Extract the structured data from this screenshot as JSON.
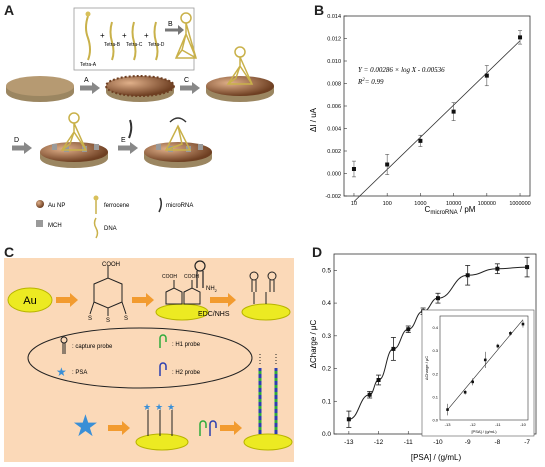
{
  "figure": {
    "labels": {
      "A": "A",
      "B": "B",
      "C": "C",
      "D": "D"
    }
  },
  "panelA": {
    "inset_parts": [
      "Tetra-A",
      "Tetra-B",
      "Tetra-C",
      "Tetra-D"
    ],
    "arrow_steps": [
      "A",
      "B",
      "C",
      "D",
      "E"
    ],
    "legend": [
      {
        "icon": "au-np-icon",
        "label": "Au NP"
      },
      {
        "icon": "ferrocene-icon",
        "label": "ferrocene"
      },
      {
        "icon": "microrna-icon",
        "label": "microRNA"
      },
      {
        "icon": "mch-icon",
        "label": "MCH"
      },
      {
        "icon": "dna-icon",
        "label": "DNA"
      }
    ],
    "colors": {
      "au_np": "#8a5a3a",
      "base": "#b69a72",
      "dna": "#c9b14a"
    }
  },
  "panelC": {
    "au_label": "Au",
    "cooh": "COOH",
    "nh2": "NH",
    "nh2_sub": "2",
    "reagent": "EDC/NHS",
    "legend": [
      "capture probe",
      "H1 probe",
      "PSA",
      "H2 probe"
    ],
    "legend_prefix": ":",
    "sulfur": "S",
    "colors": {
      "background": "#fbd9b8",
      "au": "#ecea22",
      "psa": "#3a8fd6",
      "h1": "#2eaa3a",
      "h2": "#2b3fb0"
    }
  },
  "chart_data": [
    {
      "type": "scatter",
      "panel": "B",
      "x": [
        10,
        100,
        1000,
        10000,
        100000,
        1000000
      ],
      "y": [
        0.0004,
        0.0008,
        0.0029,
        0.0055,
        0.0087,
        0.0121
      ],
      "yerr": [
        0.0007,
        0.0009,
        0.0005,
        0.0008,
        0.0009,
        0.0006
      ],
      "fit": {
        "slope": 0.00286,
        "intercept": -0.00536
      },
      "equation": "Y = 0.00286 × log X - 0.00536",
      "r2_label": "R",
      "r2_value": "= 0.99",
      "x_log": true,
      "xlim": [
        10,
        1000000
      ],
      "ylim": [
        -0.002,
        0.014
      ],
      "x_ticks": [
        "10",
        "100",
        "1000",
        "10000",
        "100000",
        "1000000"
      ],
      "y_ticks": [
        "-0.002",
        "0.000",
        "0.002",
        "0.004",
        "0.006",
        "0.008",
        "0.010",
        "0.012",
        "0.014"
      ],
      "ylabel": "ΔI / uA",
      "xlabel_main": "C",
      "xlabel_sub": "microRNA",
      "xlabel_unit": " / pM"
    },
    {
      "type": "line",
      "panel": "D",
      "x": [
        -13,
        -12.3,
        -12,
        -11.5,
        -11,
        -10.5,
        -10,
        -9,
        -8,
        -7
      ],
      "y": [
        0.045,
        0.12,
        0.165,
        0.26,
        0.32,
        0.375,
        0.415,
        0.485,
        0.505,
        0.51
      ],
      "yerr": [
        0.025,
        0.01,
        0.015,
        0.035,
        0.01,
        0.01,
        0.015,
        0.03,
        0.015,
        0.03
      ],
      "xlim": [
        -13.5,
        -6.7
      ],
      "ylim": [
        0,
        0.55
      ],
      "x_ticks": [
        "-13",
        "-12",
        "-11",
        "-10",
        "-9",
        "-8",
        "-7"
      ],
      "y_ticks": [
        "0.0",
        "0.1",
        "0.2",
        "0.3",
        "0.4",
        "0.5"
      ],
      "xlabel": "[PSA] / (g/mL)",
      "ylabel": "ΔCharge / μC",
      "inset": {
        "x": [
          -13,
          -12.3,
          -12,
          -11.5,
          -11,
          -10.5,
          -10
        ],
        "y": [
          0.045,
          0.12,
          0.165,
          0.26,
          0.32,
          0.375,
          0.415
        ],
        "yerr": [
          0.025,
          0.01,
          0.015,
          0.035,
          0.01,
          0.01,
          0.015
        ],
        "x_ticks": [
          "-13",
          "-12",
          "-11",
          "-10"
        ],
        "y_ticks": [
          "0.0",
          "0.1",
          "0.2",
          "0.3",
          "0.4"
        ],
        "xlabel": "[PSA] / (g/mL)",
        "ylabel": "ΔCharge / μC"
      }
    }
  ]
}
